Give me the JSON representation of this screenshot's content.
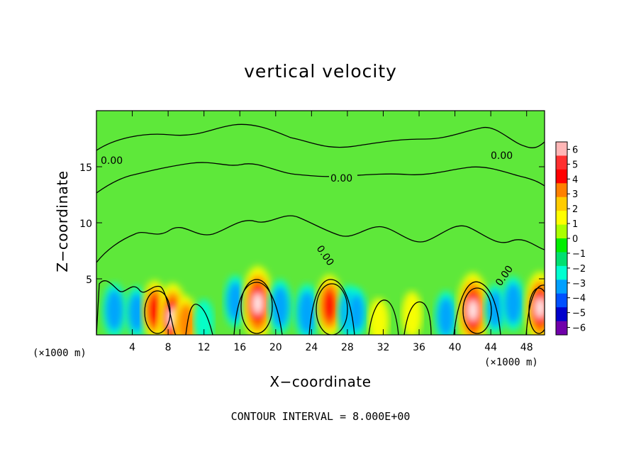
{
  "chart_data": {
    "type": "heatmap",
    "title": "vertical velocity",
    "xlabel": "X−coordinate",
    "ylabel": "Z−coordinate",
    "x_unit": "(×1000 m)",
    "footer": "CONTOUR INTERVAL = 8.000E+00",
    "xlim": [
      0,
      50
    ],
    "ylim": [
      0,
      20
    ],
    "x_ticks": [
      4,
      8,
      12,
      16,
      20,
      24,
      28,
      32,
      36,
      40,
      44,
      48
    ],
    "y_ticks": [
      5,
      10,
      15
    ],
    "colorbar": {
      "ticks": [
        "6",
        "5",
        "4",
        "3",
        "2",
        "1",
        "0",
        "−1",
        "−2",
        "−3",
        "−4",
        "−5",
        "−6"
      ],
      "range": [
        -6,
        6
      ],
      "colors": [
        "#ffb6b6",
        "#ff3030",
        "#ff0000",
        "#ff8000",
        "#ffcc00",
        "#ffff00",
        "#aaff00",
        "#00ee00",
        "#00e070",
        "#00ffd0",
        "#00a0ff",
        "#0050ff",
        "#0000cc",
        "#7000aa"
      ]
    },
    "contour_labels": [
      "0.00",
      "0.00",
      "0.00",
      "0.00",
      "0.00"
    ],
    "features": [
      {
        "x": 2.0,
        "z": 2.2,
        "w": -4
      },
      {
        "x": 4.5,
        "z": 2.0,
        "w": -3.5
      },
      {
        "x": 6.5,
        "z": 2.2,
        "w": 5
      },
      {
        "x": 8.5,
        "z": 1.5,
        "w": 7
      },
      {
        "x": 10.0,
        "z": 1.0,
        "w": 4
      },
      {
        "x": 12.0,
        "z": 1.2,
        "w": -2
      },
      {
        "x": 15.5,
        "z": 3.0,
        "w": -3.5
      },
      {
        "x": 18.0,
        "z": 2.8,
        "w": 8
      },
      {
        "x": 20.5,
        "z": 2.5,
        "w": -4
      },
      {
        "x": 23.5,
        "z": 2.0,
        "w": -4.5
      },
      {
        "x": 26.0,
        "z": 2.6,
        "w": 5.5
      },
      {
        "x": 28.2,
        "z": 2.0,
        "w": -4
      },
      {
        "x": 29.0,
        "z": 2.0,
        "w": -3
      },
      {
        "x": 31.5,
        "z": 1.2,
        "w": 2.5
      },
      {
        "x": 35.2,
        "z": 1.8,
        "w": 2.5
      },
      {
        "x": 39.0,
        "z": 1.6,
        "w": -3.5
      },
      {
        "x": 42.0,
        "z": 2.2,
        "w": 8
      },
      {
        "x": 44.5,
        "z": 2.3,
        "w": -3
      },
      {
        "x": 46.5,
        "z": 2.8,
        "w": -4
      },
      {
        "x": 49.5,
        "z": 2.4,
        "w": 7.5
      }
    ]
  }
}
